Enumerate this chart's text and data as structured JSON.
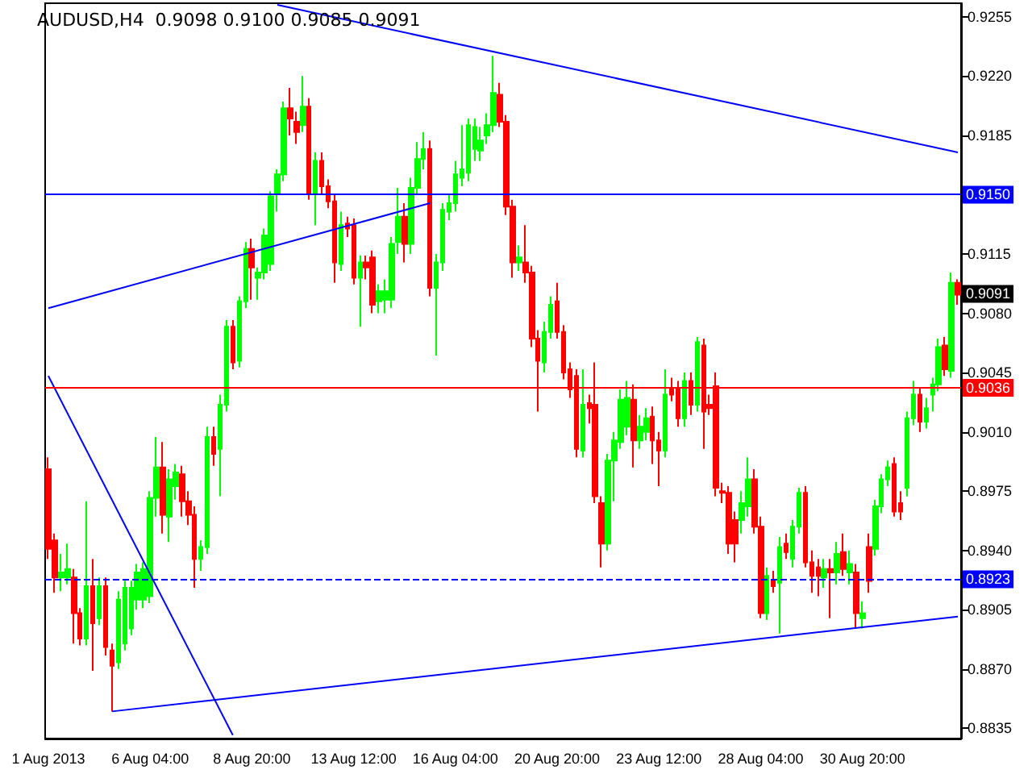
{
  "chart_data": {
    "type": "candlestick",
    "title": "AUDUSD,H4  0.9098 0.9100 0.9085 0.9091",
    "categories": [
      "1 Aug 2013",
      null,
      null,
      null,
      null,
      null,
      null,
      null,
      null,
      null,
      null,
      null,
      null,
      null,
      null,
      null,
      "6 Aug 04:00",
      null,
      null,
      null,
      null,
      null,
      null,
      null,
      null,
      null,
      null,
      null,
      null,
      null,
      null,
      null,
      "8 Aug 20:00",
      null,
      null,
      null,
      null,
      null,
      null,
      null,
      null,
      null,
      null,
      null,
      null,
      null,
      null,
      null,
      "13 Aug 12:00",
      null,
      null,
      null,
      null,
      null,
      null,
      null,
      null,
      null,
      null,
      null,
      null,
      null,
      null,
      null,
      "16 Aug 04:00",
      null,
      null,
      null,
      null,
      null,
      null,
      null,
      null,
      null,
      null,
      null,
      null,
      null,
      null,
      null,
      "20 Aug 20:00",
      null,
      null,
      null,
      null,
      null,
      null,
      null,
      null,
      null,
      null,
      null,
      null,
      null,
      null,
      null,
      "23 Aug 12:00",
      null,
      null,
      null,
      null,
      null,
      null,
      null,
      null,
      null,
      null,
      null,
      null,
      null,
      null,
      null,
      "28 Aug 04:00",
      null,
      null,
      null,
      null,
      null,
      null,
      null,
      null,
      null,
      null,
      null,
      null,
      null,
      null,
      null,
      "30 Aug 20:00",
      null,
      null,
      null,
      null,
      null,
      null,
      null,
      null,
      null,
      null,
      null,
      null,
      null,
      null,
      null
    ],
    "series": [
      {
        "type": "candlestick",
        "ohlc": [
          [
            0.8988,
            0.8995,
            0.8935,
            0.8941
          ],
          [
            0.8946,
            0.895,
            0.8915,
            0.8924
          ],
          [
            0.8924,
            0.8938,
            0.8916,
            0.8927
          ],
          [
            0.8924,
            0.8944,
            0.892,
            0.8929
          ],
          [
            0.8924,
            0.8929,
            0.8885,
            0.8903
          ],
          [
            0.8903,
            0.8906,
            0.8884,
            0.8888
          ],
          [
            0.8888,
            0.8969,
            0.8884,
            0.8919
          ],
          [
            0.8919,
            0.8935,
            0.8869,
            0.8897
          ],
          [
            0.89,
            0.8924,
            0.8896,
            0.8919
          ],
          [
            0.8919,
            0.8924,
            0.8878,
            0.8883
          ],
          [
            0.8881,
            0.8885,
            0.8845,
            0.8872
          ],
          [
            0.8874,
            0.8916,
            0.887,
            0.8911
          ],
          [
            0.8885,
            0.8922,
            0.8881,
            0.8918
          ],
          [
            0.8894,
            0.8922,
            0.889,
            0.8918
          ],
          [
            0.8911,
            0.8932,
            0.8905,
            0.8927
          ],
          [
            0.8911,
            0.8933,
            0.8906,
            0.8929
          ],
          [
            0.8913,
            0.8975,
            0.8909,
            0.8971
          ],
          [
            0.8971,
            0.9007,
            0.896,
            0.8989
          ],
          [
            0.8989,
            0.9004,
            0.895,
            0.8961
          ],
          [
            0.896,
            0.8988,
            0.8945,
            0.8982
          ],
          [
            0.8978,
            0.8991,
            0.897,
            0.8986
          ],
          [
            0.8985,
            0.899,
            0.896,
            0.8969
          ],
          [
            0.8969,
            0.8975,
            0.8955,
            0.8961
          ],
          [
            0.8961,
            0.8966,
            0.8918,
            0.8935
          ],
          [
            0.8935,
            0.8946,
            0.8928,
            0.8942
          ],
          [
            0.8942,
            0.9013,
            0.8938,
            0.9007
          ],
          [
            0.9007,
            0.9013,
            0.899,
            0.8997
          ],
          [
            0.9,
            0.9032,
            0.8972,
            0.9026
          ],
          [
            0.9026,
            0.9076,
            0.9022,
            0.9072
          ],
          [
            0.9072,
            0.9076,
            0.9047,
            0.9051
          ],
          [
            0.9052,
            0.909,
            0.9048,
            0.9087
          ],
          [
            0.9087,
            0.9122,
            0.9083,
            0.9118
          ],
          [
            0.9118,
            0.9124,
            0.9088,
            0.9107
          ],
          [
            0.9101,
            0.9107,
            0.9088,
            0.9104
          ],
          [
            0.9104,
            0.913,
            0.91,
            0.9126
          ],
          [
            0.9109,
            0.9152,
            0.9105,
            0.9149
          ],
          [
            0.9151,
            0.9165,
            0.914,
            0.9162
          ],
          [
            0.9162,
            0.9205,
            0.9158,
            0.9201
          ],
          [
            0.9201,
            0.9213,
            0.9185,
            0.9195
          ],
          [
            0.9193,
            0.9199,
            0.918,
            0.9187
          ],
          [
            0.9191,
            0.922,
            0.9187,
            0.9202
          ],
          [
            0.9202,
            0.9207,
            0.9147,
            0.9151
          ],
          [
            0.9151,
            0.9175,
            0.9132,
            0.917
          ],
          [
            0.917,
            0.9175,
            0.915,
            0.9155
          ],
          [
            0.9155,
            0.9159,
            0.9142,
            0.9146
          ],
          [
            0.9146,
            0.915,
            0.9098,
            0.911
          ],
          [
            0.9109,
            0.914,
            0.9105,
            0.9132
          ],
          [
            0.9133,
            0.9137,
            0.9125,
            0.913
          ],
          [
            0.9132,
            0.9136,
            0.9097,
            0.9101
          ],
          [
            0.9101,
            0.9114,
            0.9072,
            0.911
          ],
          [
            0.911,
            0.9114,
            0.91,
            0.9107
          ],
          [
            0.9113,
            0.9117,
            0.908,
            0.9085
          ],
          [
            0.9087,
            0.9097,
            0.908,
            0.9093
          ],
          [
            0.9088,
            0.91,
            0.908,
            0.9093
          ],
          [
            0.9088,
            0.9125,
            0.9083,
            0.9121
          ],
          [
            0.9122,
            0.9154,
            0.9115,
            0.9137
          ],
          [
            0.9137,
            0.9145,
            0.911,
            0.9121
          ],
          [
            0.9121,
            0.916,
            0.9115,
            0.9154
          ],
          [
            0.9154,
            0.9181,
            0.915,
            0.9171
          ],
          [
            0.9171,
            0.9187,
            0.9165,
            0.9177
          ],
          [
            0.9177,
            0.9182,
            0.909,
            0.9095
          ],
          [
            0.9095,
            0.9115,
            0.9055,
            0.911
          ],
          [
            0.911,
            0.9145,
            0.9105,
            0.9141
          ],
          [
            0.914,
            0.915,
            0.9135,
            0.9145
          ],
          [
            0.9145,
            0.917,
            0.914,
            0.9162
          ],
          [
            0.916,
            0.9191,
            0.9155,
            0.9165
          ],
          [
            0.9163,
            0.9195,
            0.9158,
            0.9191
          ],
          [
            0.9177,
            0.9195,
            0.917,
            0.919
          ],
          [
            0.9176,
            0.919,
            0.917,
            0.9182
          ],
          [
            0.9185,
            0.9198,
            0.918,
            0.9191
          ],
          [
            0.9191,
            0.9232,
            0.9187,
            0.921
          ],
          [
            0.9209,
            0.9216,
            0.919,
            0.9193
          ],
          [
            0.9193,
            0.9197,
            0.9138,
            0.9143
          ],
          [
            0.9143,
            0.9147,
            0.9101,
            0.911
          ],
          [
            0.911,
            0.912,
            0.9105,
            0.9113
          ],
          [
            0.911,
            0.9132,
            0.9098,
            0.9104
          ],
          [
            0.9104,
            0.9108,
            0.906,
            0.9065
          ],
          [
            0.9065,
            0.907,
            0.9022,
            0.9052
          ],
          [
            0.9051,
            0.9075,
            0.9045,
            0.9069
          ],
          [
            0.9069,
            0.909,
            0.9065,
            0.9085
          ],
          [
            0.9087,
            0.9098,
            0.9065,
            0.9069
          ],
          [
            0.9069,
            0.9073,
            0.9041,
            0.9045
          ],
          [
            0.9047,
            0.9051,
            0.903,
            0.9035
          ],
          [
            0.9043,
            0.9047,
            0.8995,
            0.9
          ],
          [
            0.8999,
            0.9047,
            0.8995,
            0.9026
          ],
          [
            0.9027,
            0.9032,
            0.9015,
            0.9024
          ],
          [
            0.9026,
            0.9051,
            0.8968,
            0.8972
          ],
          [
            0.8968,
            0.8972,
            0.893,
            0.8944
          ],
          [
            0.8944,
            0.8997,
            0.894,
            0.8993
          ],
          [
            0.8993,
            0.901,
            0.8969,
            0.9005
          ],
          [
            0.9004,
            0.9035,
            0.9,
            0.9029
          ],
          [
            0.9013,
            0.904,
            0.9008,
            0.903
          ],
          [
            0.9029,
            0.9038,
            0.8989,
            0.9005
          ],
          [
            0.9005,
            0.902,
            0.9,
            0.9013
          ],
          [
            0.901,
            0.9024,
            0.9005,
            0.9018
          ],
          [
            0.9019,
            0.9025,
            0.8991,
            0.9005
          ],
          [
            0.9005,
            0.901,
            0.8978,
            0.8999
          ],
          [
            0.8999,
            0.9047,
            0.8995,
            0.9032
          ],
          [
            0.9035,
            0.9042,
            0.9028,
            0.9032
          ],
          [
            0.9035,
            0.904,
            0.9013,
            0.9018
          ],
          [
            0.9018,
            0.9045,
            0.9013,
            0.904
          ],
          [
            0.904,
            0.9045,
            0.902,
            0.9026
          ],
          [
            0.9026,
            0.9066,
            0.9022,
            0.9063
          ],
          [
            0.9061,
            0.9065,
            0.9,
            0.9022
          ],
          [
            0.9026,
            0.9032,
            0.902,
            0.9024
          ],
          [
            0.9037,
            0.9045,
            0.8972,
            0.8977
          ],
          [
            0.8975,
            0.898,
            0.8968,
            0.8974
          ],
          [
            0.8974,
            0.8978,
            0.8938,
            0.8944
          ],
          [
            0.8958,
            0.8963,
            0.8933,
            0.8944
          ],
          [
            0.8958,
            0.8975,
            0.895,
            0.8968
          ],
          [
            0.8966,
            0.8995,
            0.896,
            0.8982
          ],
          [
            0.8982,
            0.8988,
            0.895,
            0.8954
          ],
          [
            0.8954,
            0.896,
            0.89,
            0.8903
          ],
          [
            0.8903,
            0.893,
            0.8899,
            0.8925
          ],
          [
            0.8922,
            0.8928,
            0.8915,
            0.8919
          ],
          [
            0.8921,
            0.8948,
            0.8891,
            0.8942
          ],
          [
            0.8944,
            0.895,
            0.8935,
            0.8939
          ],
          [
            0.8935,
            0.8958,
            0.893,
            0.8954
          ],
          [
            0.8954,
            0.8977,
            0.895,
            0.8974
          ],
          [
            0.8974,
            0.8978,
            0.893,
            0.8933
          ],
          [
            0.8933,
            0.894,
            0.8915,
            0.8925
          ],
          [
            0.893,
            0.8935,
            0.8913,
            0.8925
          ],
          [
            0.8924,
            0.8935,
            0.8918,
            0.8929
          ],
          [
            0.8929,
            0.8935,
            0.89,
            0.8927
          ],
          [
            0.8927,
            0.8945,
            0.892,
            0.8938
          ],
          [
            0.8939,
            0.895,
            0.8925,
            0.8929
          ],
          [
            0.8927,
            0.894,
            0.892,
            0.8932
          ],
          [
            0.8927,
            0.8932,
            0.8894,
            0.8903
          ],
          [
            0.89,
            0.891,
            0.8894,
            0.8903
          ],
          [
            0.8942,
            0.895,
            0.8915,
            0.8922
          ],
          [
            0.8941,
            0.897,
            0.8937,
            0.8966
          ],
          [
            0.8966,
            0.8985,
            0.8962,
            0.8982
          ],
          [
            0.8982,
            0.8993,
            0.8978,
            0.8989
          ],
          [
            0.8991,
            0.8995,
            0.896,
            0.8963
          ],
          [
            0.8968,
            0.8975,
            0.8958,
            0.8963
          ],
          [
            0.8977,
            0.9022,
            0.8972,
            0.9018
          ],
          [
            0.9018,
            0.904,
            0.9014,
            0.9032
          ],
          [
            0.9032,
            0.9036,
            0.901,
            0.9016
          ],
          [
            0.9016,
            0.903,
            0.9012,
            0.9024
          ],
          [
            0.9032,
            0.9042,
            0.9022,
            0.9038
          ],
          [
            0.9038,
            0.9065,
            0.9034,
            0.906
          ],
          [
            0.9061,
            0.9066,
            0.9043,
            0.9047
          ],
          [
            0.9046,
            0.9104,
            0.9042,
            0.9098
          ],
          [
            0.9098,
            0.91,
            0.9085,
            0.9091
          ]
        ],
        "colors": [
          "#ff0000",
          "#ff0000",
          "#00ff00",
          "#00ff00",
          "#ff0000",
          "#ff0000",
          "#00ff00",
          "#ff0000",
          "#00ff00",
          "#ff0000",
          "#ff0000",
          "#00ff00",
          "#00ff00",
          "#00ff00",
          "#00ff00",
          "#00ff00",
          "#00ff00",
          "#00ff00",
          "#ff0000",
          "#00ff00",
          "#00ff00",
          "#ff0000",
          "#ff0000",
          "#ff0000",
          "#00ff00",
          "#00ff00",
          "#ff0000",
          "#00ff00",
          "#00ff00",
          "#ff0000",
          "#00ff00",
          "#00ff00",
          "#ff0000",
          "#00ff00",
          "#00ff00",
          "#00ff00",
          "#00ff00",
          "#00ff00",
          "#ff0000",
          "#ff0000",
          "#00ff00",
          "#ff0000",
          "#00ff00",
          "#ff0000",
          "#ff0000",
          "#ff0000",
          "#00ff00",
          "#ff0000",
          "#ff0000",
          "#00ff00",
          "#ff0000",
          "#ff0000",
          "#00ff00",
          "#00ff00",
          "#00ff00",
          "#00ff00",
          "#ff0000",
          "#00ff00",
          "#00ff00",
          "#00ff00",
          "#ff0000",
          "#00ff00",
          "#00ff00",
          "#00ff00",
          "#00ff00",
          "#00ff00",
          "#00ff00",
          "#00ff00",
          "#00ff00",
          "#00ff00",
          "#00ff00",
          "#ff0000",
          "#ff0000",
          "#ff0000",
          "#00ff00",
          "#ff0000",
          "#ff0000",
          "#ff0000",
          "#00ff00",
          "#00ff00",
          "#ff0000",
          "#ff0000",
          "#ff0000",
          "#ff0000",
          "#00ff00",
          "#ff0000",
          "#ff0000",
          "#ff0000",
          "#00ff00",
          "#00ff00",
          "#00ff00",
          "#00ff00",
          "#ff0000",
          "#00ff00",
          "#00ff00",
          "#ff0000",
          "#ff0000",
          "#00ff00",
          "#ff0000",
          "#ff0000",
          "#00ff00",
          "#ff0000",
          "#00ff00",
          "#ff0000",
          "#ff0000",
          "#ff0000",
          "#ff0000",
          "#ff0000",
          "#ff0000",
          "#00ff00",
          "#00ff00",
          "#ff0000",
          "#ff0000",
          "#00ff00",
          "#ff0000",
          "#00ff00",
          "#ff0000",
          "#00ff00",
          "#00ff00",
          "#ff0000",
          "#ff0000",
          "#ff0000",
          "#00ff00",
          "#ff0000",
          "#00ff00",
          "#ff0000",
          "#00ff00",
          "#ff0000",
          "#00ff00",
          "#ff0000",
          "#00ff00",
          "#00ff00",
          "#00ff00",
          "#ff0000",
          "#ff0000",
          "#00ff00",
          "#00ff00",
          "#ff0000",
          "#00ff00",
          "#00ff00",
          "#00ff00",
          "#ff0000",
          "#00ff00",
          "#ff0000"
        ]
      },
      {
        "type": "line",
        "color": "#0000ff",
        "values": [
          null,
          null,
          null,
          null,
          null,
          null,
          null,
          null,
          null,
          null,
          null,
          null,
          null,
          null,
          null,
          null,
          null,
          null,
          null,
          null,
          null,
          null,
          null,
          null,
          null,
          null,
          null,
          null,
          null,
          null,
          null,
          null,
          null,
          null,
          null,
          null,
          0.9262,
          null,
          null,
          null,
          null,
          null,
          null,
          null,
          null,
          null,
          null,
          null,
          null,
          null,
          null,
          null,
          null,
          null,
          null,
          null,
          null,
          null,
          null,
          null,
          null,
          null,
          null,
          null,
          null,
          null,
          null,
          null,
          null,
          null,
          null,
          null,
          null,
          null,
          null,
          null,
          null,
          null,
          null,
          null,
          null,
          null,
          null,
          null,
          null,
          null,
          null,
          null,
          null,
          null,
          null,
          null,
          null,
          null,
          null,
          null,
          null,
          null,
          null,
          null,
          null,
          null,
          null,
          null,
          null,
          null,
          null,
          null,
          null,
          null,
          null,
          null,
          null,
          null,
          null,
          null,
          null,
          null,
          null,
          null,
          null,
          null,
          null,
          null,
          null,
          null,
          null,
          null,
          null,
          null,
          null,
          null,
          null,
          null,
          null,
          null,
          null,
          null,
          null,
          null,
          null,
          null,
          null,
          0.9175
        ]
      },
      {
        "type": "line",
        "color": "#0000ff",
        "values": [
          null,
          null,
          null,
          null,
          null,
          null,
          null,
          null,
          null,
          null,
          0.8845,
          null,
          null,
          null,
          null,
          null,
          null,
          null,
          null,
          null,
          null,
          null,
          null,
          null,
          null,
          null,
          null,
          null,
          null,
          null,
          null,
          null,
          null,
          null,
          null,
          null,
          null,
          null,
          null,
          null,
          null,
          null,
          null,
          null,
          null,
          null,
          null,
          null,
          null,
          null,
          null,
          null,
          null,
          null,
          null,
          null,
          null,
          null,
          null,
          null,
          null,
          null,
          null,
          null,
          null,
          null,
          null,
          null,
          null,
          null,
          null,
          null,
          null,
          null,
          null,
          null,
          null,
          null,
          null,
          null,
          null,
          null,
          null,
          null,
          null,
          null,
          null,
          null,
          null,
          null,
          null,
          null,
          null,
          null,
          null,
          null,
          null,
          null,
          null,
          null,
          null,
          null,
          null,
          null,
          null,
          null,
          null,
          null,
          null,
          null,
          null,
          null,
          null,
          null,
          null,
          null,
          null,
          null,
          null,
          null,
          null,
          null,
          null,
          null,
          null,
          null,
          null,
          null,
          null,
          null,
          null,
          null,
          null,
          null,
          null,
          null,
          null,
          null,
          null,
          null,
          null,
          null,
          null,
          0.8901
        ]
      },
      {
        "type": "line",
        "color": "#0000ff",
        "values": [
          0.9083,
          null,
          null,
          null,
          null,
          null,
          null,
          null,
          null,
          null,
          null,
          null,
          null,
          null,
          null,
          null,
          null,
          null,
          null,
          null,
          null,
          null,
          null,
          null,
          null,
          null,
          null,
          null,
          null,
          null,
          null,
          null,
          null,
          null,
          null,
          null,
          null,
          null,
          null,
          null,
          null,
          null,
          null,
          null,
          null,
          null,
          null,
          null,
          null,
          null,
          null,
          null,
          null,
          null,
          null,
          null,
          null,
          null,
          null,
          null,
          0.9145,
          null,
          null,
          null,
          null,
          null,
          null,
          null,
          null,
          null,
          null,
          null,
          null,
          null,
          null,
          null,
          null,
          null,
          null,
          null,
          null,
          null,
          null,
          null,
          null,
          null,
          null,
          null,
          null,
          null,
          null,
          null,
          null,
          null,
          null,
          null,
          null,
          null,
          null,
          null,
          null,
          null,
          null,
          null,
          null,
          null,
          null,
          null,
          null,
          null,
          null,
          null,
          null,
          null,
          null,
          null,
          null,
          null,
          null,
          null,
          null,
          null,
          null,
          null,
          null,
          null,
          null,
          null,
          null,
          null,
          null,
          null,
          null,
          null,
          null,
          null,
          null,
          null,
          null,
          null,
          null,
          null,
          null,
          null
        ]
      },
      {
        "type": "line",
        "color": "#0000ff",
        "values": [
          0.9043,
          null,
          null,
          null,
          null,
          null,
          null,
          null,
          null,
          null,
          null,
          null,
          null,
          null,
          null,
          null,
          null,
          null,
          null,
          null,
          null,
          null,
          null,
          null,
          null,
          null,
          null,
          null,
          null,
          0.8831,
          null,
          null,
          null,
          null,
          null,
          null,
          null,
          null,
          null,
          null,
          null,
          null,
          null,
          null,
          null,
          null,
          null,
          null,
          null,
          null,
          null,
          null,
          null,
          null,
          null,
          null,
          null,
          null,
          null,
          null,
          null,
          null,
          null,
          null,
          null,
          null,
          null,
          null,
          null,
          null,
          null,
          null,
          null,
          null,
          null,
          null,
          null,
          null,
          null,
          null,
          null,
          null,
          null,
          null,
          null,
          null,
          null,
          null,
          null,
          null,
          null,
          null,
          null,
          null,
          null,
          null,
          null,
          null,
          null,
          null,
          null,
          null,
          null,
          null,
          null,
          null,
          null,
          null,
          null,
          null,
          null,
          null,
          null,
          null,
          null,
          null,
          null,
          null,
          null,
          null,
          null,
          null,
          null,
          null,
          null,
          null,
          null,
          null,
          null,
          null,
          null,
          null,
          null,
          null,
          null,
          null,
          null,
          null,
          null,
          null,
          null,
          null,
          null,
          null
        ]
      }
    ],
    "ylim": [
      0.8829,
      0.9263
    ],
    "yticks": [
      {
        "value": 0.8835,
        "label": "0.8835"
      },
      {
        "value": 0.887,
        "label": "0.8870"
      },
      {
        "value": 0.8905,
        "label": "0.8905"
      },
      {
        "value": 0.894,
        "label": "0.8940"
      },
      {
        "value": 0.8975,
        "label": "0.8975"
      },
      {
        "value": 0.901,
        "label": "0.9010"
      },
      {
        "value": 0.9045,
        "label": "0.9045"
      },
      {
        "value": 0.908,
        "label": "0.9080"
      },
      {
        "value": 0.9115,
        "label": "0.9115"
      },
      {
        "value": 0.9185,
        "label": "0.9185"
      },
      {
        "value": 0.922,
        "label": "0.9220"
      },
      {
        "value": 0.9255,
        "label": "0.9255"
      }
    ],
    "ref_lines": [
      {
        "axis": "y",
        "value": 0.915,
        "label": "0.9150",
        "color": "#0000ff",
        "line_style": "solid"
      },
      {
        "axis": "y",
        "value": 0.9036,
        "label": "0.9036",
        "color": "#ff0000",
        "line_style": "solid"
      },
      {
        "axis": "y",
        "value": 0.8923,
        "label": "0.8923",
        "color": "#0000ff",
        "line_style": "dashed"
      }
    ],
    "annotations": [
      {
        "text": "0.9091",
        "y": 0.9091
      }
    ]
  }
}
